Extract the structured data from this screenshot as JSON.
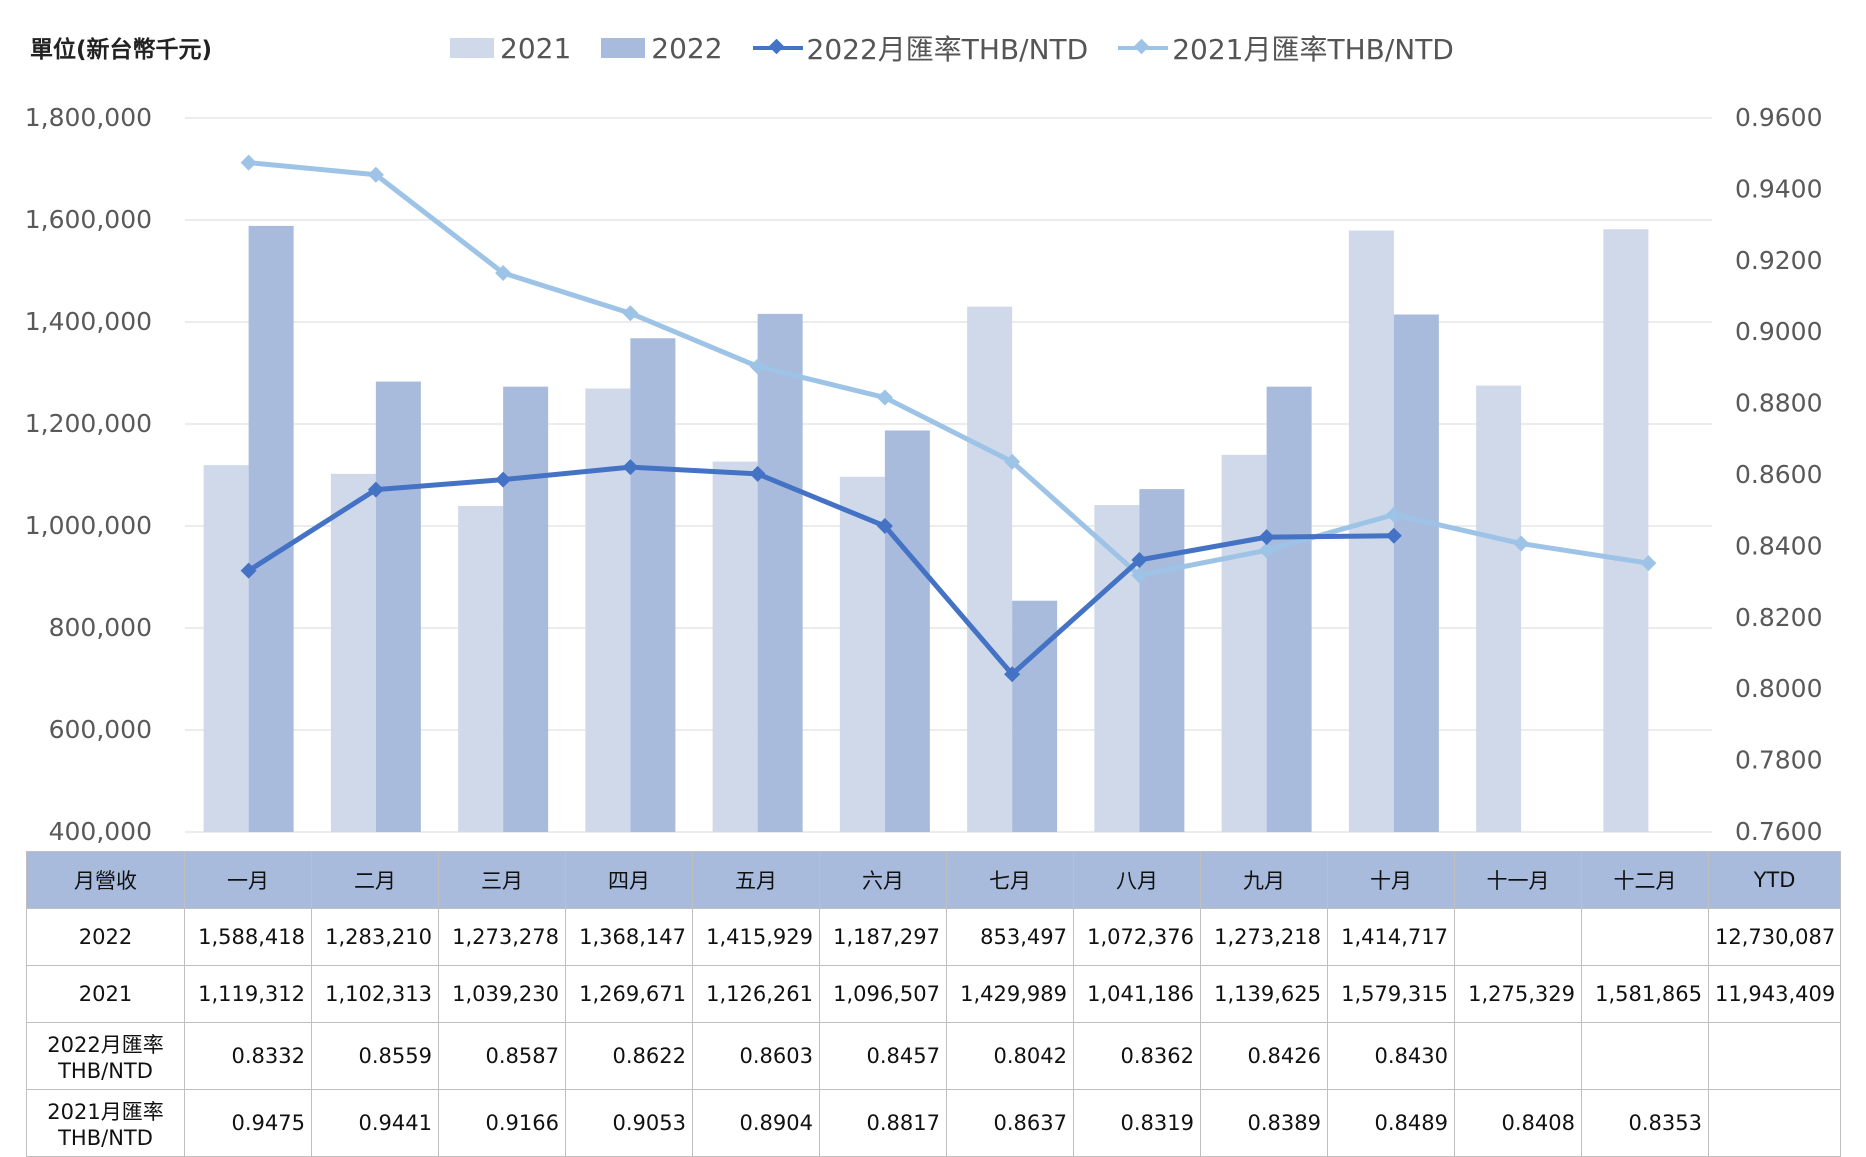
{
  "unit_label": "單位(新台幣千元)",
  "legend": [
    {
      "label": "2021",
      "kind": "bar",
      "color": "#cfd9ea"
    },
    {
      "label": "2022",
      "kind": "bar",
      "color": "#a9bbdc"
    },
    {
      "label": "2022月匯率THB/NTD",
      "kind": "line",
      "color": "#4472c4"
    },
    {
      "label": "2021月匯率THB/NTD",
      "kind": "line",
      "color": "#9dc3e6"
    }
  ],
  "chart_data": {
    "type": "bar",
    "categories": [
      "一月",
      "二月",
      "三月",
      "四月",
      "五月",
      "六月",
      "七月",
      "八月",
      "九月",
      "十月",
      "十一月",
      "十二月"
    ],
    "series": [
      {
        "name": "2021",
        "type": "bar",
        "axis": "left",
        "color": "#cfd9ea",
        "values": [
          1119312,
          1102313,
          1039230,
          1269671,
          1126261,
          1096507,
          1429989,
          1041186,
          1139625,
          1579315,
          1275329,
          1581865
        ]
      },
      {
        "name": "2022",
        "type": "bar",
        "axis": "left",
        "color": "#a9bbdc",
        "values": [
          1588418,
          1283210,
          1273278,
          1368147,
          1415929,
          1187297,
          853497,
          1072376,
          1273218,
          1414717,
          null,
          null
        ]
      },
      {
        "name": "2022月匯率THB/NTD",
        "type": "line",
        "axis": "right",
        "color": "#4472c4",
        "values": [
          0.8332,
          0.8559,
          0.8587,
          0.8622,
          0.8603,
          0.8457,
          0.8042,
          0.8362,
          0.8426,
          0.843,
          null,
          null
        ]
      },
      {
        "name": "2021月匯率THB/NTD",
        "type": "line",
        "axis": "right",
        "color": "#9dc3e6",
        "values": [
          0.9475,
          0.9441,
          0.9166,
          0.9053,
          0.8904,
          0.8817,
          0.8637,
          0.8319,
          0.8389,
          0.8489,
          0.8408,
          0.8353
        ]
      }
    ],
    "ylim": [
      400000,
      1800000
    ],
    "y2lim": [
      0.76,
      0.96
    ],
    "yticks": [
      "400,000",
      "600,000",
      "800,000",
      "1,000,000",
      "1,200,000",
      "1,400,000",
      "1,600,000",
      "1,800,000"
    ],
    "y2ticks": [
      "0.7600",
      "0.7800",
      "0.8000",
      "0.8200",
      "0.8400",
      "0.8600",
      "0.8800",
      "0.9000",
      "0.9200",
      "0.9400",
      "0.9600"
    ],
    "grid": true,
    "legend_position": "top"
  },
  "table": {
    "header": [
      "月營收",
      "一月",
      "二月",
      "三月",
      "四月",
      "五月",
      "六月",
      "七月",
      "八月",
      "九月",
      "十月",
      "十一月",
      "十二月",
      "YTD"
    ],
    "rows": [
      {
        "label": "2022",
        "cells": [
          "1,588,418",
          "1,283,210",
          "1,273,278",
          "1,368,147",
          "1,415,929",
          "1,187,297",
          "853,497",
          "1,072,376",
          "1,273,218",
          "1,414,717",
          "",
          "",
          "12,730,087"
        ]
      },
      {
        "label": "2021",
        "cells": [
          "1,119,312",
          "1,102,313",
          "1,039,230",
          "1,269,671",
          "1,126,261",
          "1,096,507",
          "1,429,989",
          "1,041,186",
          "1,139,625",
          "1,579,315",
          "1,275,329",
          "1,581,865",
          "11,943,409"
        ]
      },
      {
        "label_line1": "2022月匯率",
        "label_line2": "THB/NTD",
        "cells": [
          "0.8332",
          "0.8559",
          "0.8587",
          "0.8622",
          "0.8603",
          "0.8457",
          "0.8042",
          "0.8362",
          "0.8426",
          "0.8430",
          "",
          "",
          ""
        ]
      },
      {
        "label_line1": "2021月匯率",
        "label_line2": "THB/NTD",
        "cells": [
          "0.9475",
          "0.9441",
          "0.9166",
          "0.9053",
          "0.8904",
          "0.8817",
          "0.8637",
          "0.8319",
          "0.8389",
          "0.8489",
          "0.8408",
          "0.8353",
          ""
        ]
      }
    ]
  }
}
